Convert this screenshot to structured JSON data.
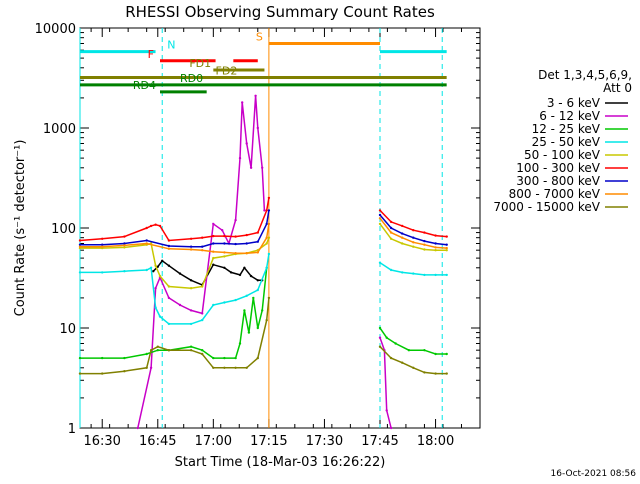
{
  "chart_data": {
    "type": "line",
    "title": "RHESSI Observing Summary Count Rates",
    "xlabel": "Start Time (18-Mar-03 16:26:22)",
    "ylabel": "Count Rate (s⁻¹ detector⁻¹)",
    "footer": "16-Oct-2021 08:56",
    "x_range_minutes": [
      16.4,
      18.2
    ],
    "x_ticks": [
      {
        "label": "16:30",
        "hour": 16.5
      },
      {
        "label": "16:45",
        "hour": 16.75
      },
      {
        "label": "17:00",
        "hour": 17.0
      },
      {
        "label": "17:15",
        "hour": 17.25
      },
      {
        "label": "17:30",
        "hour": 17.5
      },
      {
        "label": "17:45",
        "hour": 17.75
      },
      {
        "label": "18:00",
        "hour": 18.0
      }
    ],
    "y_scale": "log",
    "ylim": [
      1,
      10000
    ],
    "y_ticks": [
      "1",
      "10",
      "100",
      "1000",
      "10000"
    ],
    "legend_header": [
      "Det 1,3,4,5,6,9,",
      "Att 0"
    ],
    "legend_placement": "right",
    "series": [
      {
        "name": "3 - 6 keV",
        "color": "#000000",
        "points": [
          [
            16.73,
            37
          ],
          [
            16.75,
            41
          ],
          [
            16.77,
            47
          ],
          [
            16.8,
            42
          ],
          [
            16.85,
            35
          ],
          [
            16.9,
            30
          ],
          [
            16.95,
            27
          ],
          [
            17.0,
            43
          ],
          [
            17.05,
            40
          ],
          [
            17.08,
            36
          ],
          [
            17.12,
            34
          ],
          [
            17.14,
            40
          ],
          [
            17.17,
            33
          ],
          [
            17.2,
            30
          ],
          [
            17.22,
            30
          ]
        ]
      },
      {
        "name": "6 - 12 keV",
        "color": "#c800c8",
        "points": [
          [
            16.66,
            1
          ],
          [
            16.72,
            4
          ],
          [
            16.74,
            25
          ],
          [
            16.76,
            32
          ],
          [
            16.8,
            20
          ],
          [
            16.85,
            17
          ],
          [
            16.9,
            15
          ],
          [
            16.95,
            14
          ],
          [
            17.0,
            110
          ],
          [
            17.04,
            95
          ],
          [
            17.07,
            70
          ],
          [
            17.1,
            120
          ],
          [
            17.12,
            500
          ],
          [
            17.13,
            1800
          ],
          [
            17.15,
            700
          ],
          [
            17.17,
            400
          ],
          [
            17.19,
            2100
          ],
          [
            17.2,
            1000
          ],
          [
            17.22,
            400
          ],
          [
            17.23,
            150
          ]
        ]
      },
      {
        "name": "12 - 25 keV",
        "color": "#00c800",
        "points": [
          [
            16.4,
            5
          ],
          [
            16.5,
            5
          ],
          [
            16.6,
            5
          ],
          [
            16.7,
            5.5
          ],
          [
            16.75,
            6
          ],
          [
            16.8,
            6
          ],
          [
            16.9,
            6.5
          ],
          [
            16.95,
            6
          ],
          [
            17.0,
            5
          ],
          [
            17.05,
            5
          ],
          [
            17.1,
            5
          ],
          [
            17.12,
            7
          ],
          [
            17.14,
            15
          ],
          [
            17.16,
            9
          ],
          [
            17.18,
            20
          ],
          [
            17.2,
            10
          ],
          [
            17.22,
            15
          ],
          [
            17.24,
            40
          ]
        ]
      },
      {
        "name": "25 - 50 keV",
        "color": "#00e6e6",
        "points": [
          [
            16.4,
            36
          ],
          [
            16.5,
            36
          ],
          [
            16.6,
            37
          ],
          [
            16.7,
            38
          ],
          [
            16.72,
            40
          ],
          [
            16.74,
            16
          ],
          [
            16.76,
            13
          ],
          [
            16.8,
            11
          ],
          [
            16.9,
            11
          ],
          [
            16.95,
            12
          ],
          [
            17.0,
            17
          ],
          [
            17.05,
            18
          ],
          [
            17.1,
            19
          ],
          [
            17.15,
            21
          ],
          [
            17.2,
            24
          ],
          [
            17.24,
            40
          ],
          [
            17.25,
            55
          ]
        ]
      },
      {
        "name": "50 - 100 keV",
        "color": "#c8c800",
        "points": [
          [
            16.4,
            63
          ],
          [
            16.5,
            63
          ],
          [
            16.6,
            64
          ],
          [
            16.7,
            68
          ],
          [
            16.72,
            70
          ],
          [
            16.74,
            42
          ],
          [
            16.76,
            33
          ],
          [
            16.8,
            26
          ],
          [
            16.9,
            25
          ],
          [
            16.95,
            26
          ],
          [
            17.0,
            50
          ],
          [
            17.05,
            52
          ],
          [
            17.1,
            55
          ],
          [
            17.15,
            56
          ],
          [
            17.2,
            60
          ],
          [
            17.24,
            70
          ],
          [
            17.25,
            80
          ]
        ]
      },
      {
        "name": "100 - 300 keV",
        "color": "#ff0000",
        "points": [
          [
            16.4,
            75
          ],
          [
            16.5,
            78
          ],
          [
            16.6,
            82
          ],
          [
            16.7,
            100
          ],
          [
            16.72,
            105
          ],
          [
            16.74,
            108
          ],
          [
            16.76,
            105
          ],
          [
            16.8,
            75
          ],
          [
            16.9,
            78
          ],
          [
            16.95,
            80
          ],
          [
            17.0,
            83
          ],
          [
            17.05,
            83
          ],
          [
            17.1,
            82
          ],
          [
            17.15,
            85
          ],
          [
            17.2,
            90
          ],
          [
            17.24,
            150
          ],
          [
            17.25,
            200
          ]
        ]
      },
      {
        "name": "300 - 800 keV",
        "color": "#0000c8",
        "points": [
          [
            16.4,
            68
          ],
          [
            16.5,
            68
          ],
          [
            16.6,
            70
          ],
          [
            16.7,
            75
          ],
          [
            16.8,
            66
          ],
          [
            16.9,
            65
          ],
          [
            16.95,
            65
          ],
          [
            17.0,
            70
          ],
          [
            17.05,
            70
          ],
          [
            17.1,
            69
          ],
          [
            17.15,
            70
          ],
          [
            17.2,
            73
          ],
          [
            17.24,
            110
          ],
          [
            17.25,
            150
          ]
        ]
      },
      {
        "name": "800 - 7000 keV",
        "color": "#ff8c00",
        "points": [
          [
            16.4,
            65
          ],
          [
            16.5,
            65
          ],
          [
            16.6,
            67
          ],
          [
            16.7,
            70
          ],
          [
            16.8,
            62
          ],
          [
            16.9,
            61
          ],
          [
            16.95,
            60
          ],
          [
            17.0,
            58
          ],
          [
            17.05,
            57
          ],
          [
            17.1,
            56
          ],
          [
            17.15,
            56
          ],
          [
            17.2,
            57
          ],
          [
            17.24,
            80
          ],
          [
            17.25,
            110
          ]
        ]
      },
      {
        "name": "7000 - 15000 keV",
        "color": "#808000",
        "points": [
          [
            16.4,
            3.5
          ],
          [
            16.5,
            3.5
          ],
          [
            16.6,
            3.7
          ],
          [
            16.7,
            4
          ],
          [
            16.72,
            6
          ],
          [
            16.75,
            6.5
          ],
          [
            16.8,
            6
          ],
          [
            16.9,
            6
          ],
          [
            16.95,
            5.5
          ],
          [
            17.0,
            4
          ],
          [
            17.05,
            4
          ],
          [
            17.1,
            4
          ],
          [
            17.15,
            4
          ],
          [
            17.2,
            5
          ],
          [
            17.24,
            12
          ],
          [
            17.25,
            20
          ]
        ]
      }
    ],
    "series_after": [
      {
        "color": "#ff0000",
        "points": [
          [
            17.75,
            150
          ],
          [
            17.8,
            115
          ],
          [
            17.85,
            105
          ],
          [
            17.9,
            95
          ],
          [
            17.95,
            90
          ],
          [
            18.0,
            84
          ],
          [
            18.05,
            82
          ]
        ]
      },
      {
        "color": "#0000c8",
        "points": [
          [
            17.75,
            135
          ],
          [
            17.8,
            100
          ],
          [
            17.85,
            88
          ],
          [
            17.9,
            80
          ],
          [
            17.95,
            74
          ],
          [
            18.0,
            70
          ],
          [
            18.05,
            68
          ]
        ]
      },
      {
        "color": "#ff8c00",
        "points": [
          [
            17.75,
            125
          ],
          [
            17.8,
            90
          ],
          [
            17.85,
            80
          ],
          [
            17.9,
            72
          ],
          [
            17.95,
            68
          ],
          [
            18.0,
            64
          ],
          [
            18.05,
            63
          ]
        ]
      },
      {
        "color": "#c8c800",
        "points": [
          [
            17.75,
            110
          ],
          [
            17.8,
            78
          ],
          [
            17.85,
            70
          ],
          [
            17.9,
            65
          ],
          [
            17.95,
            61
          ],
          [
            18.0,
            60
          ],
          [
            18.05,
            60
          ]
        ]
      },
      {
        "color": "#00e6e6",
        "points": [
          [
            17.75,
            45
          ],
          [
            17.8,
            38
          ],
          [
            17.85,
            36
          ],
          [
            17.9,
            35
          ],
          [
            17.95,
            34
          ],
          [
            18.0,
            34
          ],
          [
            18.05,
            34
          ]
        ]
      },
      {
        "color": "#00c800",
        "points": [
          [
            17.75,
            10
          ],
          [
            17.78,
            8
          ],
          [
            17.82,
            7
          ],
          [
            17.88,
            6
          ],
          [
            17.95,
            6
          ],
          [
            18.0,
            5.5
          ],
          [
            18.05,
            5.5
          ]
        ]
      },
      {
        "color": "#c800c8",
        "points": [
          [
            17.75,
            8
          ],
          [
            17.77,
            6
          ],
          [
            17.78,
            1.5
          ],
          [
            17.8,
            1
          ]
        ]
      },
      {
        "color": "#808000",
        "points": [
          [
            17.75,
            6.5
          ],
          [
            17.8,
            5
          ],
          [
            17.85,
            4.5
          ],
          [
            17.9,
            4
          ],
          [
            17.95,
            3.6
          ],
          [
            18.0,
            3.5
          ],
          [
            18.05,
            3.5
          ]
        ]
      }
    ],
    "flag_bars": [
      {
        "label": "N",
        "color": "#00e6e6",
        "y": 5800,
        "segments": [
          [
            16.4,
            16.74
          ],
          [
            17.75,
            18.05
          ]
        ]
      },
      {
        "label": "S",
        "color": "#ff8c00",
        "y": 7000,
        "segments": [
          [
            17.25,
            17.75
          ]
        ]
      },
      {
        "label": "F",
        "color": "#ff0000",
        "y": 4700,
        "segments": [
          [
            16.76,
            17.01
          ],
          [
            17.09,
            17.2
          ]
        ]
      },
      {
        "label": "FD1",
        "color": "#808000",
        "y": 3800,
        "segments": [
          [
            17.0,
            17.23
          ]
        ]
      },
      {
        "label": "FD2",
        "color": "#808000",
        "y": 3200,
        "segments": [
          [
            16.4,
            18.05
          ]
        ]
      },
      {
        "label": "RD0",
        "color": "#008000",
        "y": 2700,
        "segments": [
          [
            16.4,
            18.05
          ]
        ]
      },
      {
        "label": "RD4",
        "color": "#008000",
        "y": 2300,
        "segments": [
          [
            16.76,
            16.97
          ]
        ]
      }
    ],
    "vertical_markers": [
      {
        "hour": 16.77,
        "color": "#00e6e6",
        "style": "dashed"
      },
      {
        "hour": 17.25,
        "color": "#ff8c00",
        "style": "solid"
      },
      {
        "hour": 17.75,
        "color": "#00e6e6",
        "style": "dashed"
      },
      {
        "hour": 18.03,
        "color": "#00e6e6",
        "style": "dashed"
      },
      {
        "hour": 16.4,
        "color": "#00e6e6",
        "style": "solid"
      }
    ]
  }
}
